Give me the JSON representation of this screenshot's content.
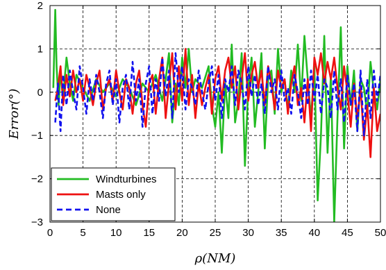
{
  "chart_data": {
    "type": "line",
    "title": "",
    "xlabel": "ρ(NM)",
    "ylabel": "Error(°)",
    "xlim": [
      0,
      50
    ],
    "ylim": [
      -3,
      2
    ],
    "xticks": [
      0,
      5,
      10,
      15,
      20,
      25,
      30,
      35,
      40,
      45,
      50
    ],
    "yticks": [
      -3,
      -2,
      -1,
      0,
      1,
      2
    ],
    "xtick_labels": [
      "0",
      "5",
      "10",
      "15",
      "20",
      "25",
      "30",
      "35",
      "40",
      "45",
      "50"
    ],
    "ytick_labels": [
      "−3",
      "−2",
      "−1",
      "0",
      "1",
      "2"
    ],
    "grid": true,
    "legend_position": "bottom-left",
    "series": [
      {
        "name": "Windturbines",
        "color": "#22bb22",
        "style": "solid",
        "x": [
          0.5,
          0.8,
          1.0,
          1.3,
          1.6,
          2.0,
          2.5,
          3.0,
          3.5,
          4.0,
          5.0,
          6.0,
          7.0,
          8.0,
          9.0,
          10.0,
          11.0,
          12.0,
          13.0,
          14.0,
          15.0,
          16.0,
          17.0,
          17.5,
          18.0,
          18.5,
          19.0,
          19.5,
          20.0,
          20.5,
          21.0,
          21.5,
          22.0,
          23.0,
          24.0,
          24.5,
          25.0,
          25.5,
          26.0,
          26.5,
          27.0,
          27.5,
          28.0,
          28.5,
          29.0,
          29.5,
          30.0,
          30.5,
          31.0,
          31.5,
          32.0,
          32.5,
          33.0,
          33.5,
          34.0,
          34.5,
          35.0,
          35.5,
          36.0,
          36.5,
          37.0,
          37.5,
          38.0,
          38.5,
          39.0,
          39.5,
          40.0,
          40.5,
          41.0,
          41.5,
          42.0,
          42.5,
          43.0,
          43.5,
          44.0,
          44.5,
          45.0,
          45.5,
          46.0,
          46.5,
          47.0,
          47.5,
          48.0,
          48.5,
          49.0,
          49.5,
          50.0
        ],
        "y": [
          0.1,
          1.9,
          0.6,
          -0.3,
          0.5,
          -0.1,
          0.8,
          0.2,
          -0.2,
          0.4,
          0.1,
          -0.2,
          0.3,
          0.0,
          0.2,
          -0.1,
          0.3,
          0.1,
          -0.3,
          0.2,
          0.0,
          0.4,
          -0.2,
          0.3,
          0.9,
          -0.7,
          0.2,
          -0.3,
          0.8,
          0.1,
          1.0,
          0.0,
          0.3,
          0.1,
          0.6,
          -0.3,
          -0.8,
          0.0,
          -1.4,
          0.2,
          -0.6,
          1.1,
          -0.7,
          -0.2,
          0.9,
          -1.7,
          0.1,
          0.8,
          -0.8,
          0.0,
          0.9,
          -1.3,
          0.3,
          0.5,
          -0.5,
          1.0,
          0.0,
          0.3,
          -0.4,
          0.5,
          0.0,
          1.1,
          -0.2,
          1.3,
          0.3,
          -0.6,
          0.6,
          -2.5,
          -1.0,
          1.3,
          -1.4,
          0.4,
          -3.0,
          -0.6,
          1.5,
          -1.3,
          0.6,
          -0.3,
          0.5,
          -0.9,
          0.3,
          0.1,
          -0.5,
          0.7,
          0.0,
          -0.4,
          0.3
        ]
      },
      {
        "name": "Masts only",
        "color": "#ee1111",
        "style": "solid",
        "x": [
          0.8,
          1.2,
          1.6,
          2.0,
          2.5,
          3.0,
          3.5,
          4.0,
          4.5,
          5.0,
          5.5,
          6.0,
          6.5,
          7.0,
          7.5,
          8.0,
          8.5,
          9.0,
          9.5,
          10.0,
          10.5,
          11.0,
          11.5,
          12.0,
          12.5,
          13.0,
          13.5,
          14.0,
          14.5,
          15.0,
          15.5,
          16.0,
          16.5,
          17.0,
          17.5,
          18.0,
          18.5,
          19.0,
          19.5,
          20.0,
          20.5,
          21.0,
          21.5,
          22.0,
          22.5,
          23.0,
          23.5,
          24.0,
          24.5,
          25.0,
          25.5,
          26.0,
          26.5,
          27.0,
          27.5,
          28.0,
          28.5,
          29.0,
          29.5,
          30.0,
          30.5,
          31.0,
          31.5,
          32.0,
          32.5,
          33.0,
          33.5,
          34.0,
          34.5,
          35.0,
          35.5,
          36.0,
          36.5,
          37.0,
          37.5,
          38.0,
          38.5,
          39.0,
          39.5,
          40.0,
          40.5,
          41.0,
          41.5,
          42.0,
          42.5,
          43.0,
          43.5,
          44.0,
          44.5,
          45.0,
          45.5,
          46.0,
          46.5,
          47.0,
          47.5,
          48.0,
          48.5,
          49.0,
          49.5,
          50.0
        ],
        "y": [
          -0.2,
          0.1,
          0.6,
          -0.3,
          0.4,
          -0.1,
          0.5,
          0.0,
          0.3,
          -0.2,
          0.4,
          0.1,
          -0.3,
          0.2,
          0.5,
          -0.4,
          0.1,
          0.3,
          -0.2,
          0.5,
          0.0,
          -0.4,
          0.3,
          0.1,
          -0.5,
          0.2,
          0.5,
          -0.3,
          -0.8,
          0.2,
          0.4,
          -0.5,
          0.3,
          0.8,
          -0.6,
          0.2,
          0.9,
          -0.4,
          0.6,
          -0.2,
          1.0,
          -0.3,
          0.4,
          -0.6,
          0.2,
          -0.3,
          0.1,
          0.4,
          -0.5,
          0.3,
          0.6,
          -0.2,
          0.5,
          0.8,
          0.1,
          0.6,
          -0.4,
          0.3,
          0.9,
          -0.2,
          0.4,
          0.7,
          0.1,
          0.5,
          -0.3,
          0.6,
          0.2,
          -0.4,
          0.5,
          0.1,
          0.3,
          -0.5,
          0.2,
          0.6,
          -0.3,
          0.1,
          -0.7,
          0.3,
          -0.9,
          0.8,
          0.4,
          0.9,
          0.2,
          0.7,
          0.3,
          0.8,
          0.1,
          -0.4,
          0.6,
          0.0,
          -0.8,
          0.2,
          -0.6,
          0.1,
          -1.1,
          -0.3,
          -1.5,
          0.1,
          -0.9,
          -0.5
        ],
        "__comment": "Masts only series"
      },
      {
        "name": "None",
        "color": "#1111ee",
        "style": "dashed",
        "x": [
          0.8,
          1.2,
          1.6,
          2.0,
          2.5,
          3.0,
          3.5,
          4.0,
          4.5,
          5.0,
          5.5,
          6.0,
          6.5,
          7.0,
          7.5,
          8.0,
          8.5,
          9.0,
          9.5,
          10.0,
          10.5,
          11.0,
          11.5,
          12.0,
          12.5,
          13.0,
          13.5,
          14.0,
          14.5,
          15.0,
          15.5,
          16.0,
          16.5,
          17.0,
          17.5,
          18.0,
          18.5,
          19.0,
          19.5,
          20.0,
          20.5,
          21.0,
          21.5,
          22.0,
          22.5,
          23.0,
          23.5,
          24.0,
          24.5,
          25.0,
          25.5,
          26.0,
          26.5,
          27.0,
          27.5,
          28.0,
          28.5,
          29.0,
          29.5,
          30.0,
          30.5,
          31.0,
          31.5,
          32.0,
          32.5,
          33.0,
          33.5,
          34.0,
          34.5,
          35.0,
          35.5,
          36.0,
          36.5,
          37.0,
          37.5,
          38.0,
          38.5,
          39.0,
          39.5,
          40.0,
          40.5,
          41.0,
          41.5,
          42.0,
          42.5,
          43.0,
          43.5,
          44.0,
          44.5,
          45.0,
          45.5,
          46.0,
          46.5,
          47.0,
          47.5,
          48.0,
          48.5,
          49.0,
          49.5,
          50.0
        ],
        "y": [
          -0.7,
          0.2,
          -0.9,
          0.4,
          -0.3,
          0.5,
          0.0,
          -0.4,
          0.6,
          0.1,
          -0.5,
          0.3,
          -0.2,
          0.4,
          0.0,
          -0.6,
          0.2,
          0.5,
          -0.3,
          0.3,
          -0.7,
          0.1,
          0.4,
          -0.4,
          0.7,
          -0.2,
          0.3,
          -0.8,
          0.2,
          0.6,
          -0.5,
          0.3,
          -0.2,
          0.8,
          -0.1,
          0.5,
          -0.6,
          0.9,
          0.0,
          0.6,
          -0.4,
          0.3,
          0.1,
          -0.3,
          0.5,
          0.0,
          -0.4,
          0.2,
          0.6,
          -0.2,
          0.4,
          -0.6,
          0.3,
          0.0,
          0.6,
          -0.3,
          0.5,
          0.2,
          -0.4,
          0.6,
          -0.1,
          0.4,
          -0.3,
          0.2,
          -0.5,
          0.6,
          0.0,
          0.3,
          -0.4,
          0.5,
          -0.2,
          0.1,
          -0.5,
          0.4,
          0.0,
          -0.6,
          0.3,
          -0.3,
          0.5,
          -0.2,
          0.4,
          -0.5,
          0.3,
          0.1,
          -0.6,
          0.5,
          -0.4,
          0.3,
          -0.7,
          0.4,
          -0.3,
          0.2,
          -0.9,
          0.5,
          -1.0,
          0.3,
          -0.6,
          0.5,
          -0.2,
          0.4
        ]
      }
    ]
  }
}
